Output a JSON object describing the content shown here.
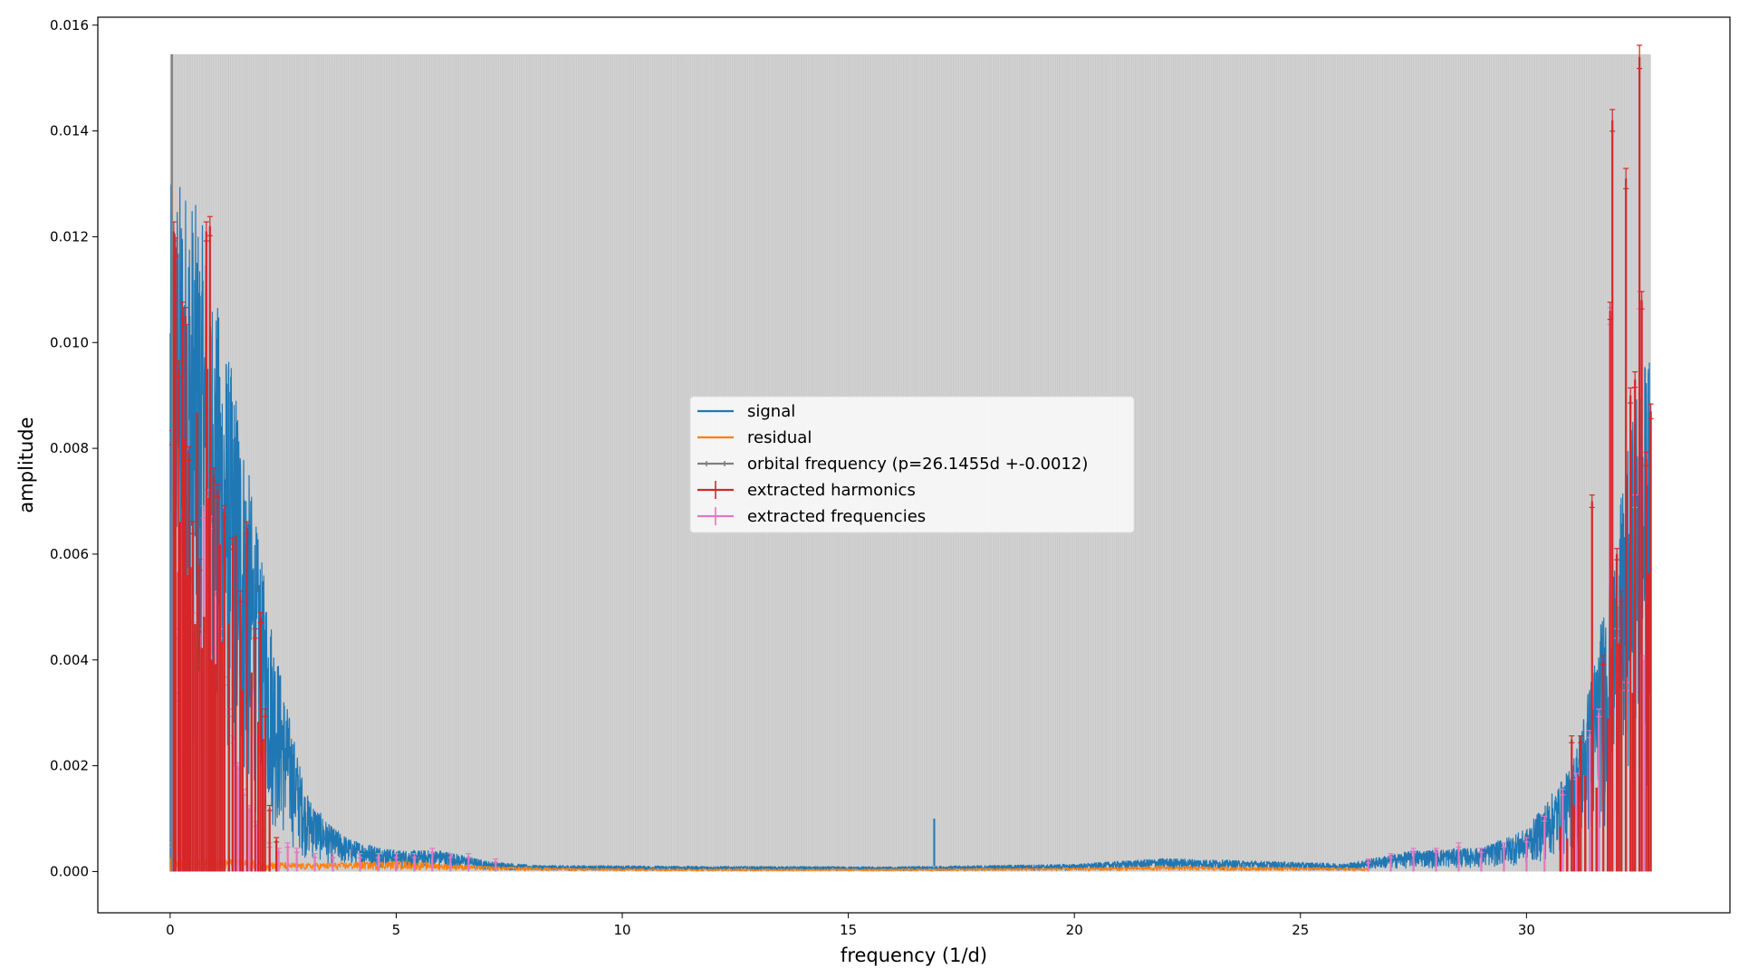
{
  "chart_data": {
    "type": "line",
    "title": "",
    "xlabel": "frequency (1/d)",
    "ylabel": "amplitude",
    "xlim": [
      -1.6,
      34.5
    ],
    "ylim": [
      -0.00078,
      0.01615
    ],
    "xticks": [
      0,
      5,
      10,
      15,
      20,
      25,
      30
    ],
    "yticks": [
      0.0,
      0.002,
      0.004,
      0.006,
      0.008,
      0.01,
      0.012,
      0.014,
      0.016
    ],
    "ytick_labels": [
      "0.000",
      "0.002",
      "0.004",
      "0.006",
      "0.008",
      "0.010",
      "0.012",
      "0.014",
      "0.016"
    ],
    "grid": false,
    "legend_placement": "center",
    "orbital_band": {
      "x_start": 0.0,
      "x_end": 32.75,
      "height": 0.01545,
      "spacing": 0.03825,
      "fill_color": "#d3d3d3",
      "line_color": "#aaaaaa"
    },
    "series": [
      {
        "name": "signal",
        "color": "#1f77b4",
        "envelope": [
          [
            0,
            0.013
          ],
          [
            0.3,
            0.0132
          ],
          [
            0.5,
            0.0128
          ],
          [
            0.8,
            0.012
          ],
          [
            1.1,
            0.0105
          ],
          [
            1.5,
            0.009
          ],
          [
            2.0,
            0.006
          ],
          [
            2.5,
            0.0035
          ],
          [
            3.0,
            0.0015
          ],
          [
            3.5,
            0.0009
          ],
          [
            4.0,
            0.0006
          ],
          [
            5.0,
            0.0004
          ],
          [
            6.0,
            0.0004
          ],
          [
            7.0,
            0.0002
          ],
          [
            8.0,
            0.00012
          ],
          [
            12.0,
            0.0001
          ],
          [
            16.0,
            9e-05
          ],
          [
            20.0,
            0.00014
          ],
          [
            22.0,
            0.00025
          ],
          [
            24.0,
            0.0002
          ],
          [
            26.0,
            0.00015
          ],
          [
            27.5,
            0.0004
          ],
          [
            29.0,
            0.00045
          ],
          [
            30.0,
            0.0008
          ],
          [
            31.0,
            0.002
          ],
          [
            31.5,
            0.004
          ],
          [
            32.0,
            0.0065
          ],
          [
            32.5,
            0.0095
          ],
          [
            32.75,
            0.0098
          ]
        ],
        "spike": {
          "x": 16.9,
          "y": 0.001
        }
      },
      {
        "name": "residual",
        "color": "#ff7f0e",
        "envelope": [
          [
            0,
            0.0003
          ],
          [
            2.0,
            0.0002
          ],
          [
            3.0,
            0.00015
          ],
          [
            5.0,
            0.0002
          ],
          [
            7.0,
            0.0001
          ],
          [
            9.0,
            6e-05
          ],
          [
            12.0,
            5e-05
          ],
          [
            16.0,
            5e-05
          ],
          [
            20.0,
            7e-05
          ],
          [
            22.0,
            0.0001
          ],
          [
            25.0,
            8e-05
          ],
          [
            26.5,
            6e-05
          ]
        ]
      },
      {
        "name": "orbital frequency (p=26.1455d +-0.0012)",
        "color": "#7f7f7f",
        "x": 0.0382,
        "y": 0.01545
      },
      {
        "name": "extracted harmonics",
        "color": "#d62728",
        "points": [
          [
            0.04,
            0.0082
          ],
          [
            0.08,
            0.0121
          ],
          [
            0.12,
            0.0118
          ],
          [
            0.19,
            0.0095
          ],
          [
            0.27,
            0.0106
          ],
          [
            0.34,
            0.0105
          ],
          [
            0.42,
            0.0079
          ],
          [
            0.5,
            0.0065
          ],
          [
            0.65,
            0.0058
          ],
          [
            0.8,
            0.0121
          ],
          [
            0.88,
            0.0122
          ],
          [
            0.96,
            0.0075
          ],
          [
            1.05,
            0.0072
          ],
          [
            1.2,
            0.0068
          ],
          [
            1.38,
            0.0062
          ],
          [
            1.55,
            0.0052
          ],
          [
            1.7,
            0.0065
          ],
          [
            1.88,
            0.0045
          ],
          [
            2.0,
            0.0048
          ],
          [
            2.1,
            0.003
          ],
          [
            2.2,
            0.0012
          ],
          [
            2.35,
            0.0006
          ],
          [
            31.0,
            0.0025
          ],
          [
            31.2,
            0.0025
          ],
          [
            31.45,
            0.007
          ],
          [
            31.7,
            0.004
          ],
          [
            31.85,
            0.0106
          ],
          [
            31.9,
            0.0142
          ],
          [
            32.0,
            0.006
          ],
          [
            32.1,
            0.0052
          ],
          [
            32.2,
            0.0131
          ],
          [
            32.3,
            0.009
          ],
          [
            32.4,
            0.0093
          ],
          [
            32.5,
            0.0154
          ],
          [
            32.55,
            0.0108
          ],
          [
            32.65,
            0.0078
          ],
          [
            32.75,
            0.0087
          ]
        ],
        "baseline_x": [
          0.1,
          0.18,
          0.22,
          0.3,
          0.38,
          0.45,
          0.55,
          0.6,
          0.7,
          0.75,
          0.85,
          0.92,
          1.0,
          1.1,
          1.15,
          1.3,
          1.45,
          1.6,
          1.8,
          1.95,
          2.05,
          30.75,
          30.9,
          31.05,
          31.15,
          31.3,
          31.55,
          31.8,
          32.05,
          32.35,
          32.7
        ]
      },
      {
        "name": "extracted frequencies",
        "color": "#e377c2",
        "points": [
          [
            0.05,
            0.0005
          ],
          [
            0.12,
            0.0045
          ],
          [
            0.2,
            0.0033
          ],
          [
            0.28,
            0.0022
          ],
          [
            0.35,
            0.0055
          ],
          [
            0.42,
            0.0045
          ],
          [
            0.5,
            0.0048
          ],
          [
            0.58,
            0.004
          ],
          [
            0.66,
            0.0045
          ],
          [
            0.74,
            0.0068
          ],
          [
            0.82,
            0.0071
          ],
          [
            0.9,
            0.0066
          ],
          [
            1.0,
            0.0052
          ],
          [
            1.1,
            0.0045
          ],
          [
            1.2,
            0.0036
          ],
          [
            1.3,
            0.003
          ],
          [
            1.4,
            0.0025
          ],
          [
            1.5,
            0.002
          ],
          [
            1.62,
            0.0015
          ],
          [
            1.75,
            0.0012
          ],
          [
            1.9,
            0.0009
          ],
          [
            2.05,
            0.0007
          ],
          [
            2.2,
            0.0005
          ],
          [
            2.4,
            0.0004
          ],
          [
            2.6,
            0.0005
          ],
          [
            2.8,
            0.0004
          ],
          [
            3.2,
            0.0003
          ],
          [
            3.6,
            0.0003
          ],
          [
            4.2,
            0.0003
          ],
          [
            4.6,
            0.0003
          ],
          [
            5.0,
            0.0003
          ],
          [
            5.4,
            0.0003
          ],
          [
            5.8,
            0.0004
          ],
          [
            6.2,
            0.0003
          ],
          [
            6.6,
            0.0003
          ],
          [
            7.2,
            0.0002
          ],
          [
            26.5,
            0.0002
          ],
          [
            27.0,
            0.0003
          ],
          [
            27.5,
            0.0004
          ],
          [
            28.0,
            0.0004
          ],
          [
            28.5,
            0.0005
          ],
          [
            29.0,
            0.0004
          ],
          [
            29.5,
            0.0005
          ],
          [
            30.0,
            0.0006
          ],
          [
            30.4,
            0.001
          ],
          [
            30.8,
            0.0015
          ],
          [
            31.1,
            0.0018
          ],
          [
            31.4,
            0.0026
          ],
          [
            31.6,
            0.003
          ],
          [
            31.85,
            0.0105
          ],
          [
            32.0,
            0.0045
          ],
          [
            32.2,
            0.0035
          ],
          [
            32.4,
            0.007
          ],
          [
            32.5,
            0.0108
          ],
          [
            32.6,
            0.004
          ],
          [
            32.7,
            0.005
          ]
        ]
      }
    ]
  }
}
